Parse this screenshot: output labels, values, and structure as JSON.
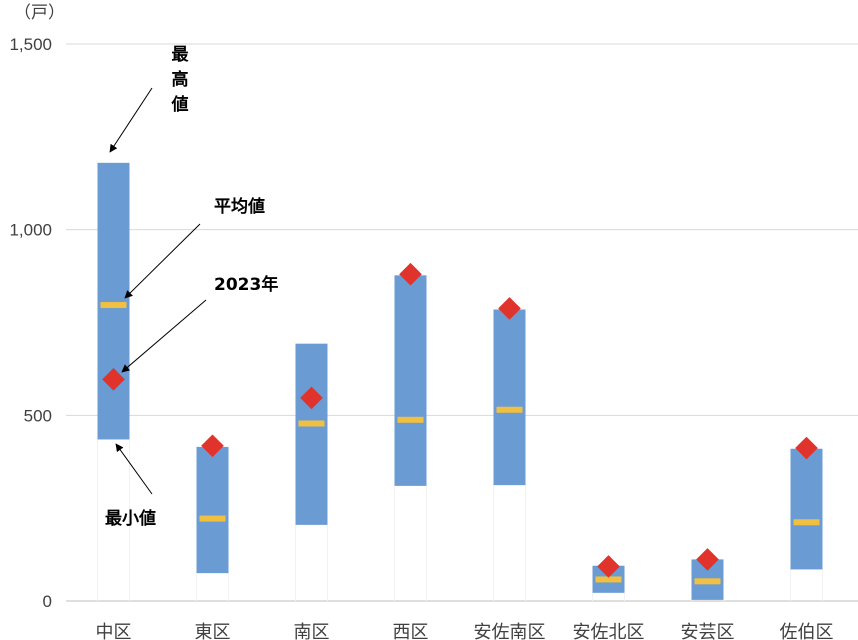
{
  "chart_data": {
    "type": "range-bar",
    "unit": "（戸）",
    "ylim": [
      0,
      1500
    ],
    "yticks": [
      {
        "value": 0,
        "label": "0"
      },
      {
        "value": 500,
        "label": "500"
      },
      {
        "value": 1000,
        "label": "1,000"
      },
      {
        "value": 1500,
        "label": "1,500"
      }
    ],
    "grid": true,
    "categories": [
      "中区",
      "東区",
      "南区",
      "西区",
      "安佐南区",
      "安佐北区",
      "安芸区",
      "佐伯区"
    ],
    "series": [
      {
        "name": "最小値",
        "values": [
          435,
          75,
          205,
          310,
          312,
          22,
          3,
          85
        ]
      },
      {
        "name": "最高値",
        "values": [
          1180,
          415,
          693,
          877,
          785,
          95,
          112,
          410
        ]
      },
      {
        "name": "平均値",
        "values": [
          797,
          222,
          478,
          488,
          515,
          58,
          53,
          212
        ]
      },
      {
        "name": "2023年",
        "values": [
          597,
          418,
          547,
          880,
          788,
          93,
          112,
          412
        ]
      }
    ],
    "annotations": [
      {
        "text": "最高値",
        "orientation": "vertical"
      },
      {
        "text": "平均値"
      },
      {
        "text": "2023年"
      },
      {
        "text": "最小値"
      }
    ],
    "colors": {
      "range": "#6a9bd3",
      "average": "#f2c040",
      "marker": "#e0332b",
      "grid": "#d9d9d9",
      "axis": "#bfbfbf"
    }
  }
}
